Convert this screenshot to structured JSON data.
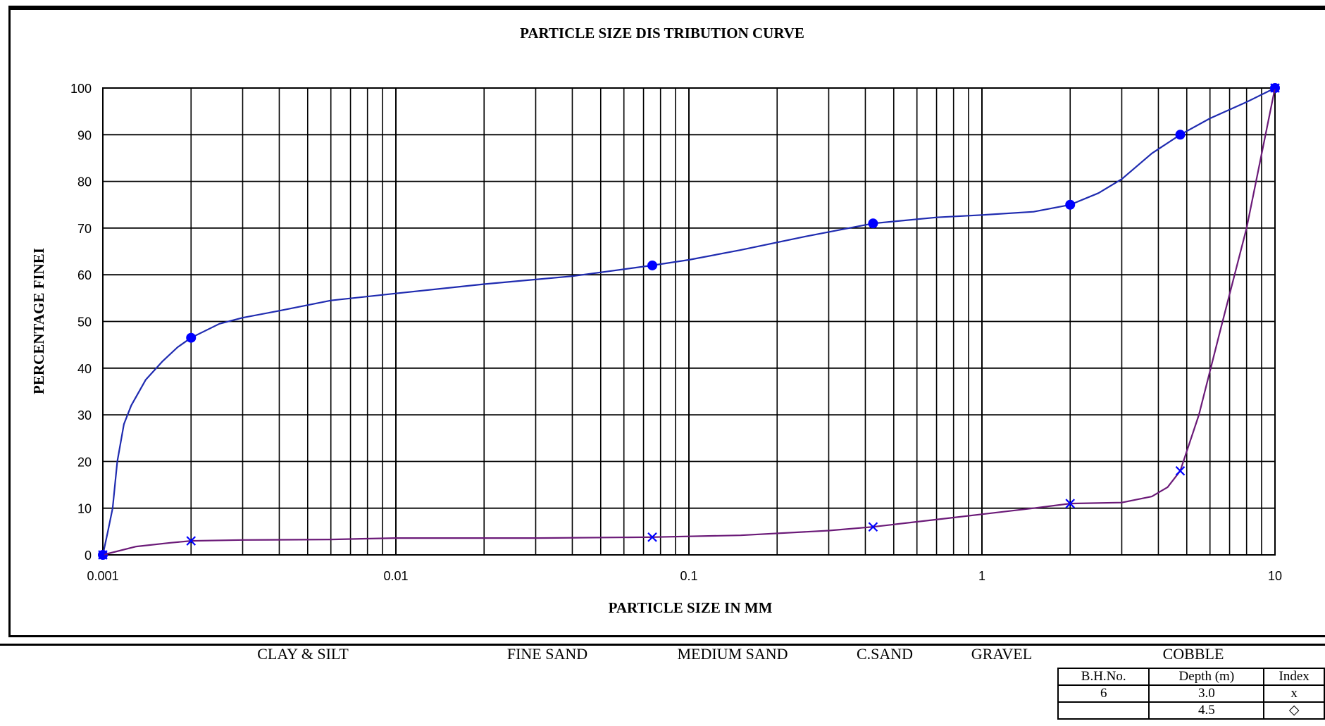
{
  "chart_data": {
    "type": "line",
    "title": "PARTICLE SIZE DIS TRIBUTION CURVE",
    "xlabel": "PARTICLE SIZE IN MM",
    "ylabel": "PERCENTAGE FINEI",
    "xscale": "log",
    "xlim": [
      0.001,
      10
    ],
    "ylim": [
      0,
      100
    ],
    "grid": true,
    "x_ticks": [
      "0.001",
      "0.01",
      "0.1",
      "1",
      "10"
    ],
    "y_ticks": [
      "0",
      "10",
      "20",
      "30",
      "40",
      "50",
      "60",
      "70",
      "80",
      "90",
      "100"
    ],
    "series": [
      {
        "name": "4.5",
        "marker": "circle",
        "color": "#1f2bb0",
        "marker_color": "#0000ff",
        "points": [
          [
            0.001,
            0
          ],
          [
            0.002,
            46.5
          ],
          [
            0.075,
            62
          ],
          [
            0.425,
            71
          ],
          [
            2.0,
            75
          ],
          [
            4.75,
            90
          ],
          [
            10,
            100
          ]
        ],
        "curve": [
          [
            0.001,
            0
          ],
          [
            0.00104,
            5
          ],
          [
            0.00108,
            10
          ],
          [
            0.00112,
            20
          ],
          [
            0.00118,
            28
          ],
          [
            0.00125,
            32
          ],
          [
            0.0014,
            37.5
          ],
          [
            0.0016,
            41.5
          ],
          [
            0.0018,
            44.5
          ],
          [
            0.002,
            46.5
          ],
          [
            0.0025,
            49.5
          ],
          [
            0.003,
            50.8
          ],
          [
            0.004,
            52.3
          ],
          [
            0.006,
            54.5
          ],
          [
            0.01,
            56
          ],
          [
            0.02,
            58
          ],
          [
            0.04,
            59.7
          ],
          [
            0.075,
            62
          ],
          [
            0.1,
            63.2
          ],
          [
            0.15,
            65.3
          ],
          [
            0.25,
            68.2
          ],
          [
            0.425,
            71
          ],
          [
            0.7,
            72.3
          ],
          [
            1.0,
            72.8
          ],
          [
            1.5,
            73.5
          ],
          [
            2.0,
            75
          ],
          [
            2.5,
            77.5
          ],
          [
            3.0,
            80.5
          ],
          [
            3.8,
            86
          ],
          [
            4.75,
            90
          ],
          [
            6,
            93.5
          ],
          [
            8,
            97
          ],
          [
            10,
            100
          ]
        ]
      },
      {
        "name": "3.0",
        "marker": "x",
        "color": "#6b1a78",
        "marker_color": "#0000ff",
        "points": [
          [
            0.001,
            0
          ],
          [
            0.002,
            3
          ],
          [
            0.075,
            3.8
          ],
          [
            0.425,
            6
          ],
          [
            2.0,
            11
          ],
          [
            4.75,
            18
          ],
          [
            10,
            100
          ]
        ],
        "curve": [
          [
            0.001,
            0
          ],
          [
            0.0013,
            1.8
          ],
          [
            0.0017,
            2.6
          ],
          [
            0.002,
            3
          ],
          [
            0.003,
            3.2
          ],
          [
            0.006,
            3.3
          ],
          [
            0.01,
            3.6
          ],
          [
            0.03,
            3.6
          ],
          [
            0.075,
            3.8
          ],
          [
            0.15,
            4.2
          ],
          [
            0.3,
            5.2
          ],
          [
            0.425,
            6
          ],
          [
            0.8,
            8
          ],
          [
            1.5,
            10
          ],
          [
            2.0,
            11
          ],
          [
            3.0,
            11.2
          ],
          [
            3.8,
            12.5
          ],
          [
            4.3,
            14.5
          ],
          [
            4.75,
            18
          ],
          [
            5.5,
            30
          ],
          [
            6.5,
            48
          ],
          [
            8,
            70
          ],
          [
            10,
            100
          ]
        ]
      }
    ]
  },
  "zones": {
    "clay_silt": "CLAY & SILT",
    "fine_sand": "FINE SAND",
    "medium_sand": "MEDIUM SAND",
    "coarse_sand": "C.SAND",
    "gravel": "GRAVEL",
    "cobble": "COBBLE"
  },
  "legend_table": {
    "headers": [
      "B.H.No.",
      "Depth (m)",
      "Index"
    ],
    "rows": [
      [
        "6",
        "3.0",
        "x"
      ],
      [
        "",
        "4.5",
        "◇"
      ]
    ]
  }
}
